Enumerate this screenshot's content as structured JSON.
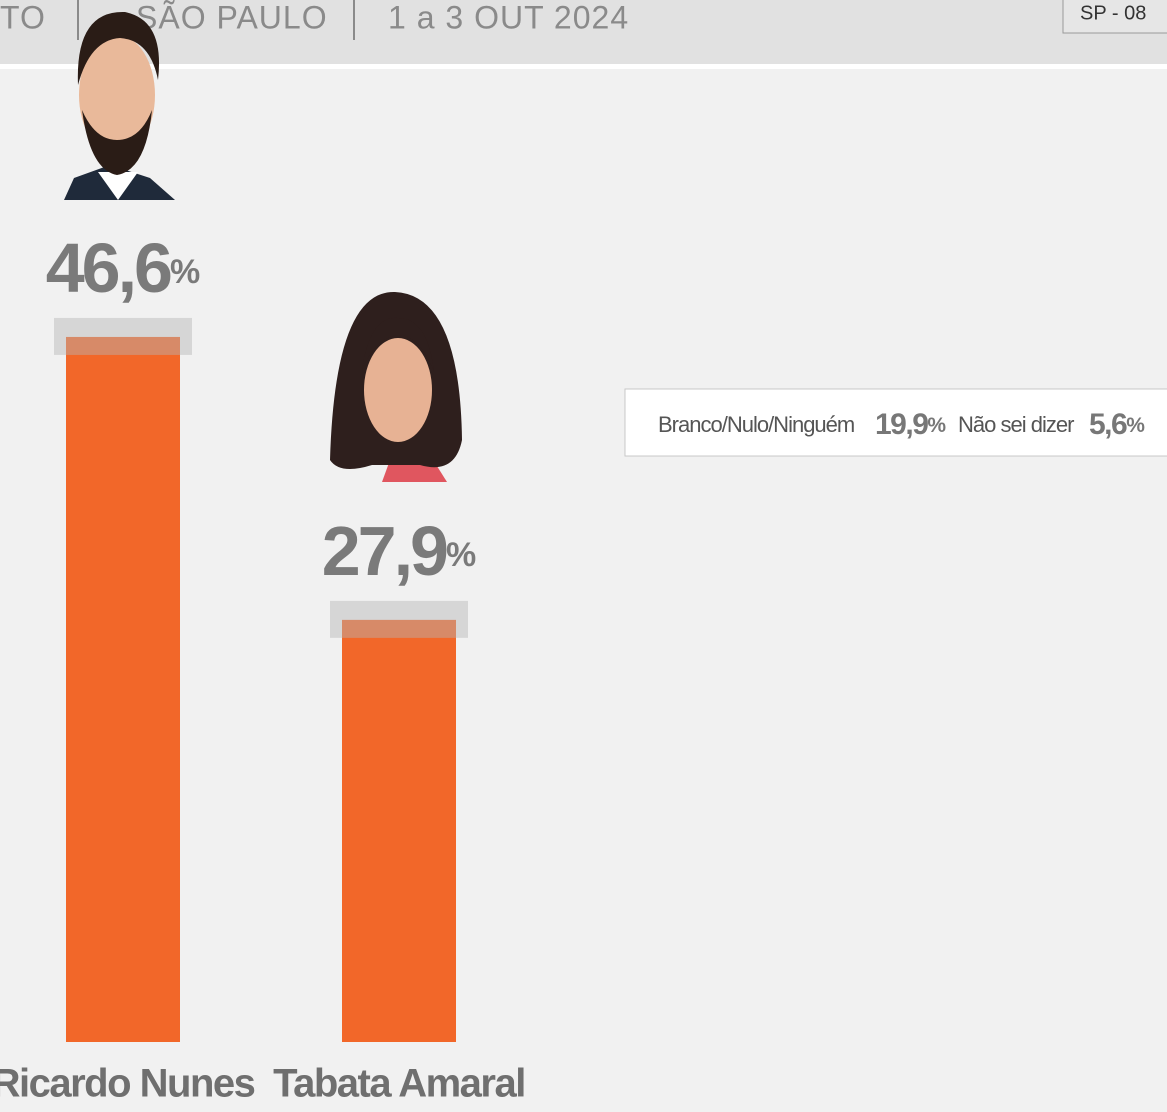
{
  "header": {
    "items": [
      "TO",
      "SÃO PAULO",
      "1 a 3 OUT 2024"
    ],
    "badge": "SP - 08"
  },
  "chart_data": {
    "type": "bar",
    "categories": [
      "Ricardo Nunes",
      "Tabata Amaral"
    ],
    "values": [
      46.6,
      27.9
    ],
    "value_labels": [
      "46,6%",
      "27,9%"
    ],
    "color": "#f26729"
  },
  "other_answers": [
    {
      "label": "Branco/Nulo/Ninguém",
      "value": 19.9,
      "value_label": "19,9%"
    },
    {
      "label": "Não sei dizer",
      "value": 5.6,
      "value_label": "5,6%"
    }
  ]
}
